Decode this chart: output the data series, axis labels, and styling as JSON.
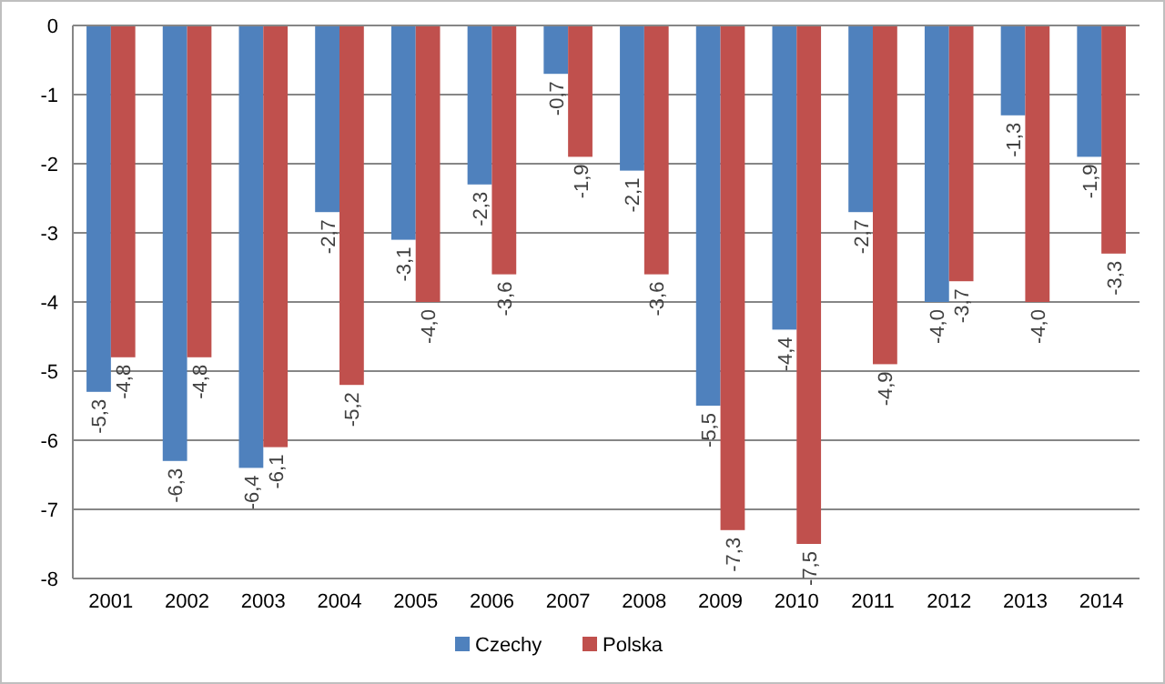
{
  "chart_data": {
    "type": "bar",
    "categories": [
      "2001",
      "2002",
      "2003",
      "2004",
      "2005",
      "2006",
      "2007",
      "2008",
      "2009",
      "2010",
      "2011",
      "2012",
      "2013",
      "2014"
    ],
    "series": [
      {
        "name": "Czechy",
        "color": "#4f81bd",
        "values": [
          -5.3,
          -6.3,
          -6.4,
          -2.7,
          -3.1,
          -2.3,
          -0.7,
          -2.1,
          -5.5,
          -4.4,
          -2.7,
          -4.0,
          -1.3,
          -1.9
        ],
        "value_labels": [
          "-5,3",
          "-6,3",
          "-6,4",
          "-2,7",
          "-3,1",
          "-2,3",
          "-0,7",
          "-2,1",
          "-5,5",
          "-4,4",
          "-2,7",
          "-4,0",
          "-1,3",
          "-1,9"
        ]
      },
      {
        "name": "Polska",
        "color": "#c0504d",
        "values": [
          -4.8,
          -4.8,
          -6.1,
          -5.2,
          -4.0,
          -3.6,
          -1.9,
          -3.6,
          -7.3,
          -7.5,
          -4.9,
          -3.7,
          -4.0,
          -3.3
        ],
        "value_labels": [
          "-4,8",
          "-4,8",
          "-6,1",
          "-5,2",
          "-4,0",
          "-3,6",
          "-1,9",
          "-3,6",
          "-7,3",
          "-7,5",
          "-4,9",
          "-3,7",
          "-4,0",
          "-3,3"
        ]
      }
    ],
    "ylim": [
      -8,
      0
    ],
    "yticks": [
      -8,
      -7,
      -6,
      -5,
      -4,
      -3,
      -2,
      -1,
      0
    ],
    "grid": "y",
    "legend": "bottom"
  }
}
